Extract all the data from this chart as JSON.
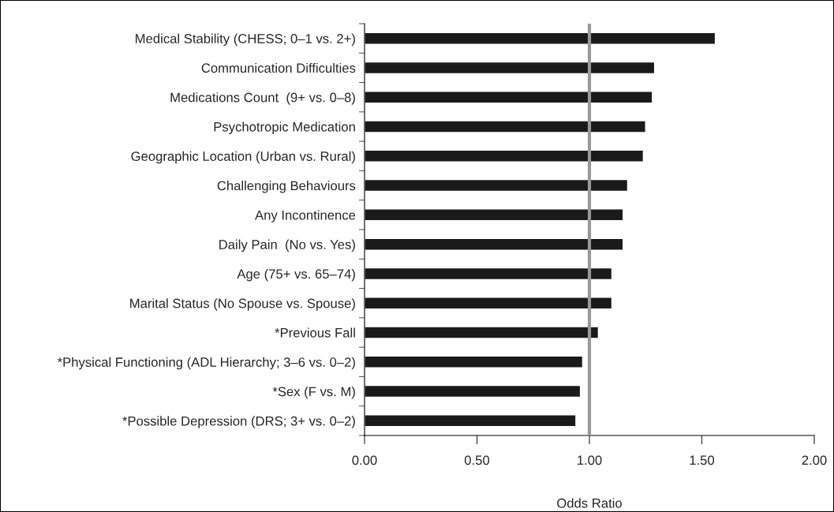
{
  "chart_data": {
    "type": "bar",
    "orientation": "horizontal",
    "xlabel": "Odds Ratio",
    "categories": [
      "Medical Stability (CHESS; 0–1 vs. 2+)",
      "Communication Difficulties",
      "Medications Count  (9+ vs. 0–8)",
      "Psychotropic Medication",
      "Geographic Location (Urban vs. Rural)",
      "Challenging Behaviours",
      "Any Incontinence",
      "Daily Pain  (No vs. Yes)",
      "Age (75+ vs. 65–74)",
      "Marital Status (No Spouse vs. Spouse)",
      "*Previous Fall",
      "*Physical Functioning (ADL Hierarchy; 3–6 vs. 0–2)",
      "*Sex (F vs. M)",
      "*Possible Depression (DRS; 3+ vs. 0–2)"
    ],
    "values": [
      1.56,
      1.29,
      1.28,
      1.25,
      1.24,
      1.17,
      1.15,
      1.15,
      1.1,
      1.1,
      1.04,
      0.97,
      0.96,
      0.94
    ],
    "color": "#1a1a1a",
    "xlim": [
      0,
      2
    ],
    "xticks": [
      {
        "value": 0,
        "label": "0.00"
      },
      {
        "value": 0.5,
        "label": "0.50"
      },
      {
        "value": 1,
        "label": "1.00"
      },
      {
        "value": 1.5,
        "label": "1.50"
      },
      {
        "value": 2,
        "label": "2.00"
      }
    ],
    "ref_lines": [
      {
        "axis": "x",
        "value": 1,
        "color": "#999999"
      }
    ],
    "grid": false,
    "legend": false
  }
}
